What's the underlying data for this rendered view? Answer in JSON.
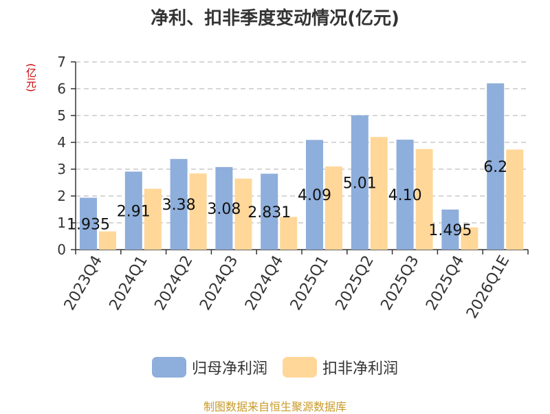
{
  "chart_data": {
    "type": "bar",
    "title": "净利、扣非季度变动情况(亿元)",
    "y_unit": "(亿元)",
    "categories": [
      "2023Q4",
      "2024Q1",
      "2024Q2",
      "2024Q3",
      "2024Q4",
      "2025Q1",
      "2025Q2",
      "2025Q3",
      "2025Q4",
      "2026Q1E"
    ],
    "series": [
      {
        "name": "归母净利润",
        "color": "#8eaedb",
        "values": [
          1.935,
          2.91,
          3.38,
          3.08,
          2.831,
          4.09,
          5.01,
          4.1,
          1.495,
          6.2
        ],
        "labels": [
          "1.935",
          "2.91",
          "3.38",
          "3.08",
          "2.831",
          "4.09",
          "5.01",
          "4.10",
          "1.495",
          "6.2"
        ]
      },
      {
        "name": "扣非净利润",
        "color": "#ffd799",
        "values": [
          0.68,
          2.27,
          2.84,
          2.65,
          1.22,
          3.1,
          4.2,
          3.75,
          0.83,
          3.73
        ]
      }
    ],
    "ylim": [
      0,
      7
    ],
    "yticks": [
      0,
      1,
      2,
      3,
      4,
      5,
      6,
      7
    ],
    "grid": true,
    "legend_position": "bottom"
  },
  "source_text": "制图数据来自恒生聚源数据库"
}
